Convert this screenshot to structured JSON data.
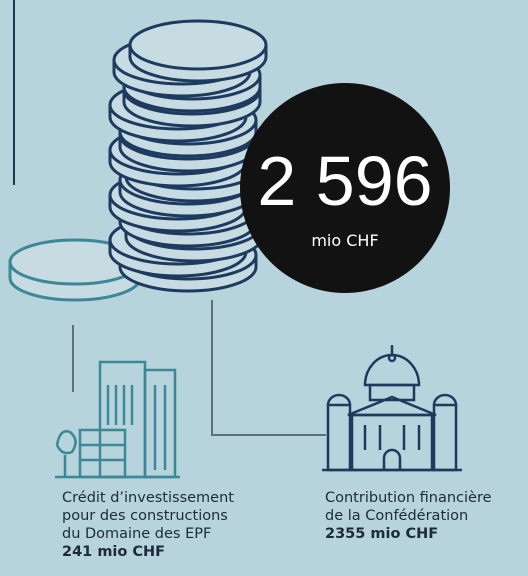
{
  "total": {
    "amount": "2 596",
    "unit": "mio CHF"
  },
  "items": [
    {
      "lines": [
        "Crédit d’investissement",
        "pour des constructions",
        "du Domaine des EPF"
      ],
      "amount": "241 mio CHF"
    },
    {
      "lines": [
        "Contribution financière",
        "de la Confédération"
      ],
      "amount": "2355 mio CHF"
    }
  ]
}
